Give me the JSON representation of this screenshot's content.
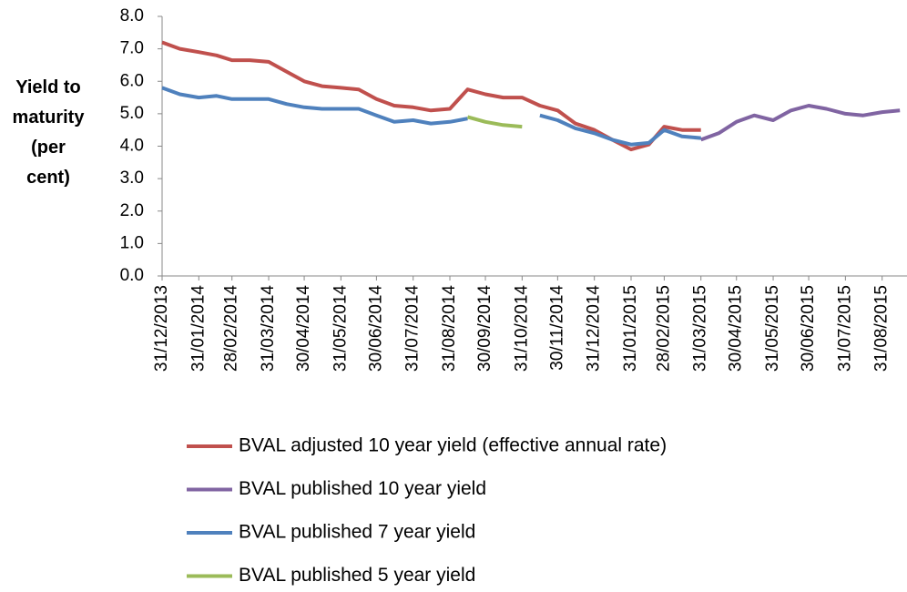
{
  "chart_data": {
    "type": "line",
    "ylabel": "Yield to maturity (per cent)",
    "x": [
      "31/12/2013",
      "15/01/2014",
      "31/01/2014",
      "15/02/2014",
      "28/02/2014",
      "15/03/2014",
      "31/03/2014",
      "15/04/2014",
      "30/04/2014",
      "15/05/2014",
      "31/05/2014",
      "15/06/2014",
      "30/06/2014",
      "15/07/2014",
      "31/07/2014",
      "15/08/2014",
      "31/08/2014",
      "15/09/2014",
      "30/09/2014",
      "15/10/2014",
      "31/10/2014",
      "15/11/2014",
      "30/11/2014",
      "15/12/2014",
      "31/12/2014",
      "15/01/2015",
      "31/01/2015",
      "15/02/2015",
      "28/02/2015",
      "15/03/2015",
      "31/03/2015",
      "15/04/2015",
      "30/04/2015",
      "15/05/2015",
      "31/05/2015",
      "15/06/2015",
      "30/06/2015",
      "15/07/2015",
      "31/07/2015",
      "15/08/2015",
      "31/08/2015",
      "15/09/2015"
    ],
    "series": [
      {
        "name": "BVAL adjusted 10 year yield (effective annual rate)",
        "color": "#c0504d",
        "values": [
          7.2,
          7.0,
          6.9,
          6.8,
          6.65,
          6.65,
          6.6,
          6.3,
          6.0,
          5.85,
          5.8,
          5.75,
          5.45,
          5.25,
          5.2,
          5.1,
          5.15,
          5.75,
          5.6,
          5.5,
          5.5,
          5.25,
          5.1,
          4.7,
          4.5,
          4.2,
          3.9,
          4.05,
          4.6,
          4.5,
          4.5,
          null,
          null,
          null,
          null,
          null,
          null,
          null,
          null,
          null,
          null,
          null
        ]
      },
      {
        "name": "BVAL published 10 year yield",
        "color": "#8064a2",
        "values": [
          null,
          null,
          null,
          null,
          null,
          null,
          null,
          null,
          null,
          null,
          null,
          null,
          null,
          null,
          null,
          null,
          null,
          null,
          null,
          null,
          null,
          null,
          null,
          null,
          null,
          null,
          null,
          null,
          null,
          null,
          4.2,
          4.4,
          4.75,
          4.95,
          4.8,
          5.1,
          5.25,
          5.15,
          5.0,
          4.95,
          5.05,
          5.1
        ]
      },
      {
        "name": "BVAL published 7 year yield",
        "color": "#4f81bd",
        "values": [
          5.8,
          5.6,
          5.5,
          5.55,
          5.45,
          5.45,
          5.45,
          5.3,
          5.2,
          5.15,
          5.15,
          5.15,
          4.95,
          4.75,
          4.8,
          4.7,
          4.75,
          4.85,
          null,
          null,
          null,
          4.95,
          4.8,
          4.55,
          4.4,
          4.2,
          4.05,
          4.1,
          4.5,
          4.3,
          4.25,
          null,
          null,
          null,
          null,
          null,
          null,
          null,
          null,
          null,
          null,
          null
        ]
      },
      {
        "name": "BVAL published 5 year yield",
        "color": "#9bbb59",
        "values": [
          null,
          null,
          null,
          null,
          null,
          null,
          null,
          null,
          null,
          null,
          null,
          null,
          null,
          null,
          null,
          null,
          null,
          4.9,
          4.75,
          4.65,
          4.6,
          null,
          null,
          null,
          null,
          null,
          null,
          null,
          null,
          null,
          null,
          null,
          null,
          null,
          null,
          null,
          null,
          null,
          null,
          null,
          null,
          null
        ]
      }
    ],
    "xlim": [
      "31/12/2013",
      "21/09/2015"
    ],
    "xticks": [
      "31/12/2013",
      "31/01/2014",
      "28/02/2014",
      "31/03/2014",
      "30/04/2014",
      "31/05/2014",
      "30/06/2014",
      "31/07/2014",
      "31/08/2014",
      "30/09/2014",
      "31/10/2014",
      "30/11/2014",
      "31/12/2014",
      "31/01/2015",
      "28/02/2015",
      "31/03/2015",
      "30/04/2015",
      "31/05/2015",
      "30/06/2015",
      "31/07/2015",
      "31/08/2015"
    ],
    "ylim": [
      0,
      8
    ],
    "yticks": [
      {
        "value": 0,
        "label": "0.0"
      },
      {
        "value": 1,
        "label": "1.0"
      },
      {
        "value": 2,
        "label": "2.0"
      },
      {
        "value": 3,
        "label": "3.0"
      },
      {
        "value": 4,
        "label": "4.0"
      },
      {
        "value": 5,
        "label": "5.0"
      },
      {
        "value": 6,
        "label": "6.0"
      },
      {
        "value": 7,
        "label": "7.0"
      },
      {
        "value": 8,
        "label": "8.0"
      }
    ],
    "grid": false,
    "legend": "bottom"
  }
}
